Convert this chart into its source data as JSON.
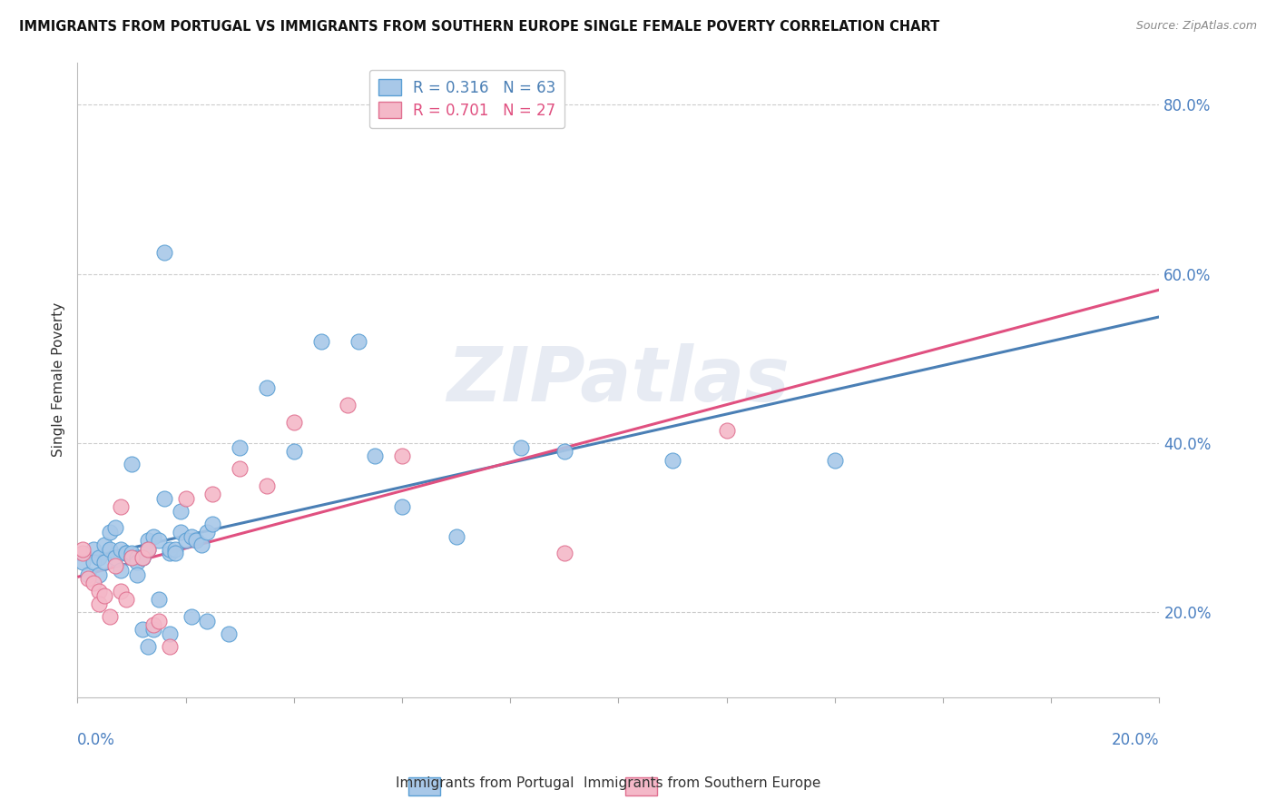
{
  "title": "IMMIGRANTS FROM PORTUGAL VS IMMIGRANTS FROM SOUTHERN EUROPE SINGLE FEMALE POVERTY CORRELATION CHART",
  "source": "Source: ZipAtlas.com",
  "ylabel": "Single Female Poverty",
  "legend1_r": "0.316",
  "legend1_n": "63",
  "legend2_r": "0.701",
  "legend2_n": "27",
  "legend1_label": "Immigrants from Portugal",
  "legend2_label": "Immigrants from Southern Europe",
  "blue_fill": "#a8c8e8",
  "blue_edge": "#5a9fd4",
  "pink_fill": "#f4b8c8",
  "pink_edge": "#e07090",
  "blue_line": "#4a7fb5",
  "pink_line": "#e05080",
  "watermark": "ZIPatlas",
  "blue_scatter": [
    [
      0.001,
      0.26
    ],
    [
      0.002,
      0.245
    ],
    [
      0.003,
      0.275
    ],
    [
      0.003,
      0.26
    ],
    [
      0.004,
      0.265
    ],
    [
      0.004,
      0.245
    ],
    [
      0.005,
      0.28
    ],
    [
      0.005,
      0.26
    ],
    [
      0.006,
      0.275
    ],
    [
      0.006,
      0.295
    ],
    [
      0.007,
      0.3
    ],
    [
      0.007,
      0.265
    ],
    [
      0.008,
      0.25
    ],
    [
      0.008,
      0.275
    ],
    [
      0.009,
      0.27
    ],
    [
      0.009,
      0.27
    ],
    [
      0.01,
      0.375
    ],
    [
      0.01,
      0.265
    ],
    [
      0.01,
      0.265
    ],
    [
      0.01,
      0.27
    ],
    [
      0.011,
      0.265
    ],
    [
      0.011,
      0.26
    ],
    [
      0.011,
      0.245
    ],
    [
      0.012,
      0.265
    ],
    [
      0.012,
      0.265
    ],
    [
      0.012,
      0.18
    ],
    [
      0.013,
      0.285
    ],
    [
      0.013,
      0.275
    ],
    [
      0.013,
      0.16
    ],
    [
      0.014,
      0.29
    ],
    [
      0.014,
      0.18
    ],
    [
      0.015,
      0.285
    ],
    [
      0.015,
      0.215
    ],
    [
      0.016,
      0.625
    ],
    [
      0.016,
      0.335
    ],
    [
      0.017,
      0.27
    ],
    [
      0.017,
      0.275
    ],
    [
      0.017,
      0.175
    ],
    [
      0.018,
      0.275
    ],
    [
      0.018,
      0.27
    ],
    [
      0.019,
      0.32
    ],
    [
      0.019,
      0.295
    ],
    [
      0.02,
      0.285
    ],
    [
      0.021,
      0.29
    ],
    [
      0.021,
      0.195
    ],
    [
      0.022,
      0.285
    ],
    [
      0.023,
      0.28
    ],
    [
      0.024,
      0.295
    ],
    [
      0.024,
      0.19
    ],
    [
      0.025,
      0.305
    ],
    [
      0.028,
      0.175
    ],
    [
      0.03,
      0.395
    ],
    [
      0.035,
      0.465
    ],
    [
      0.04,
      0.39
    ],
    [
      0.045,
      0.52
    ],
    [
      0.052,
      0.52
    ],
    [
      0.055,
      0.385
    ],
    [
      0.06,
      0.325
    ],
    [
      0.07,
      0.29
    ],
    [
      0.082,
      0.395
    ],
    [
      0.09,
      0.39
    ],
    [
      0.11,
      0.38
    ],
    [
      0.14,
      0.38
    ]
  ],
  "pink_scatter": [
    [
      0.001,
      0.27
    ],
    [
      0.001,
      0.275
    ],
    [
      0.002,
      0.24
    ],
    [
      0.003,
      0.235
    ],
    [
      0.004,
      0.225
    ],
    [
      0.004,
      0.21
    ],
    [
      0.005,
      0.22
    ],
    [
      0.006,
      0.195
    ],
    [
      0.007,
      0.255
    ],
    [
      0.008,
      0.325
    ],
    [
      0.008,
      0.225
    ],
    [
      0.009,
      0.215
    ],
    [
      0.01,
      0.265
    ],
    [
      0.012,
      0.265
    ],
    [
      0.013,
      0.275
    ],
    [
      0.014,
      0.185
    ],
    [
      0.015,
      0.19
    ],
    [
      0.017,
      0.16
    ],
    [
      0.02,
      0.335
    ],
    [
      0.025,
      0.34
    ],
    [
      0.03,
      0.37
    ],
    [
      0.035,
      0.35
    ],
    [
      0.04,
      0.425
    ],
    [
      0.05,
      0.445
    ],
    [
      0.06,
      0.385
    ],
    [
      0.09,
      0.27
    ],
    [
      0.12,
      0.415
    ]
  ],
  "xlim": [
    0.0,
    0.2
  ],
  "ylim": [
    0.1,
    0.85
  ],
  "yticks": [
    0.2,
    0.4,
    0.6,
    0.8
  ],
  "figsize": [
    14.06,
    8.92
  ],
  "dpi": 100
}
